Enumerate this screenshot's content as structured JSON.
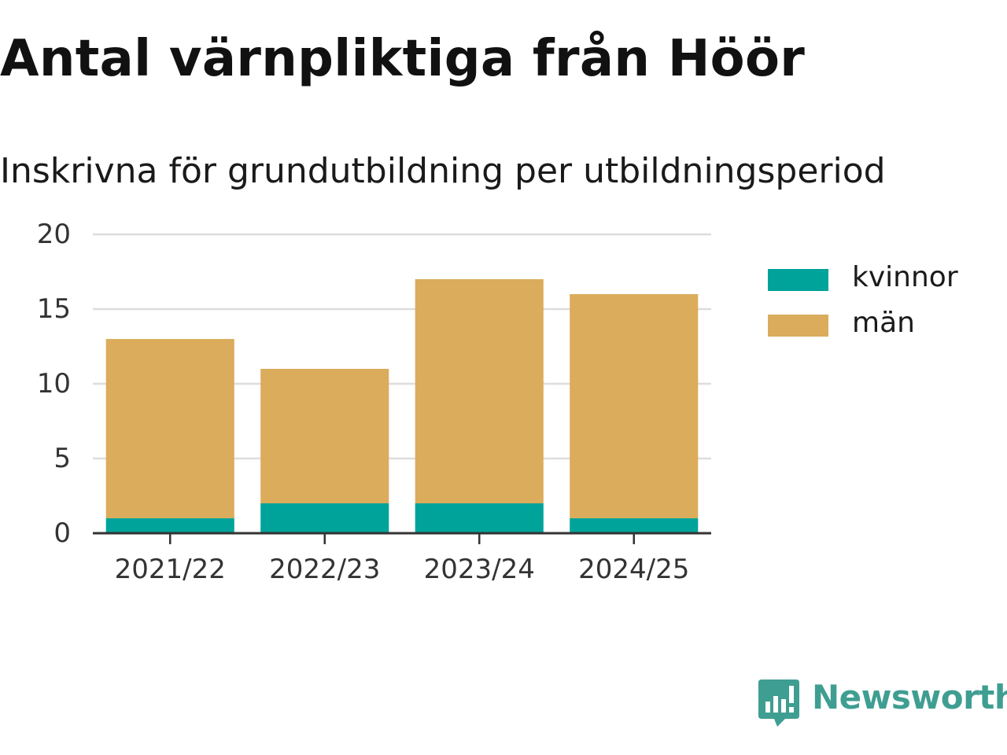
{
  "header": {
    "title": "Antal värnpliktiga från Höör",
    "subtitle": "Inskrivna för grundutbildning per utbildningsperiod"
  },
  "colors": {
    "kvinnor": "#00a39a",
    "man": "#dbac5c",
    "grid": "#dddddd",
    "axis": "#333333",
    "brand": "#3f9e92"
  },
  "chart_data": {
    "type": "bar",
    "stacked": true,
    "title": "Antal värnpliktiga från Höör",
    "subtitle": "Inskrivna för grundutbildning per utbildningsperiod",
    "categories": [
      "2021/22",
      "2022/23",
      "2023/24",
      "2024/25"
    ],
    "series": [
      {
        "name": "kvinnor",
        "values": [
          1,
          2,
          2,
          1
        ]
      },
      {
        "name": "män",
        "values": [
          12,
          9,
          15,
          15
        ]
      }
    ],
    "ylim": [
      0,
      20
    ],
    "yticks": [
      0,
      5,
      10,
      15,
      20
    ],
    "grid": true,
    "legend": "right"
  },
  "legend": {
    "items": [
      {
        "label": "kvinnor"
      },
      {
        "label": "män"
      }
    ]
  },
  "branding": {
    "name": "Newsworthy",
    "icon": "bar-chart-speech-bubble-icon"
  }
}
